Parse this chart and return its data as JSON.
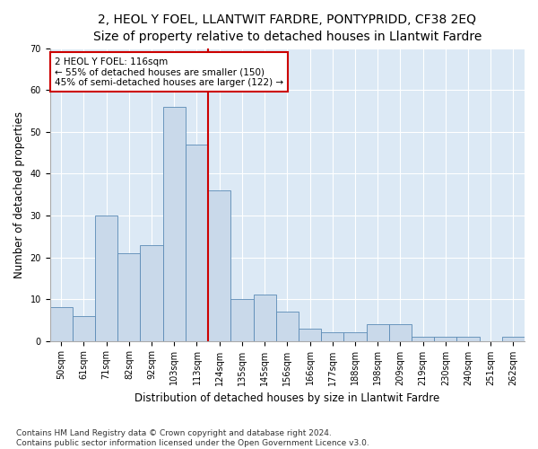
{
  "title": "2, HEOL Y FOEL, LLANTWIT FARDRE, PONTYPRIDD, CF38 2EQ",
  "subtitle": "Size of property relative to detached houses in Llantwit Fardre",
  "xlabel": "Distribution of detached houses by size in Llantwit Fardre",
  "ylabel": "Number of detached properties",
  "bar_labels": [
    "50sqm",
    "61sqm",
    "71sqm",
    "82sqm",
    "92sqm",
    "103sqm",
    "113sqm",
    "124sqm",
    "135sqm",
    "145sqm",
    "156sqm",
    "166sqm",
    "177sqm",
    "188sqm",
    "198sqm",
    "209sqm",
    "219sqm",
    "230sqm",
    "240sqm",
    "251sqm",
    "262sqm"
  ],
  "bar_heights": [
    8,
    6,
    30,
    21,
    23,
    56,
    47,
    36,
    10,
    11,
    7,
    3,
    2,
    2,
    4,
    4,
    1,
    1,
    1,
    0,
    1
  ],
  "bar_color": "#c9d9ea",
  "bar_edge_color": "#5a8ab5",
  "vline_x": 6.5,
  "vline_color": "#cc0000",
  "annotation_text": "2 HEOL Y FOEL: 116sqm\n← 55% of detached houses are smaller (150)\n45% of semi-detached houses are larger (122) →",
  "annotation_box_color": "#ffffff",
  "annotation_box_edge": "#cc0000",
  "ylim": [
    0,
    70
  ],
  "yticks": [
    0,
    10,
    20,
    30,
    40,
    50,
    60,
    70
  ],
  "background_color": "#dce9f5",
  "footer": "Contains HM Land Registry data © Crown copyright and database right 2024.\nContains public sector information licensed under the Open Government Licence v3.0.",
  "title_fontsize": 10,
  "subtitle_fontsize": 9,
  "xlabel_fontsize": 8.5,
  "ylabel_fontsize": 8.5,
  "tick_fontsize": 7,
  "footer_fontsize": 6.5,
  "annot_fontsize": 7.5
}
